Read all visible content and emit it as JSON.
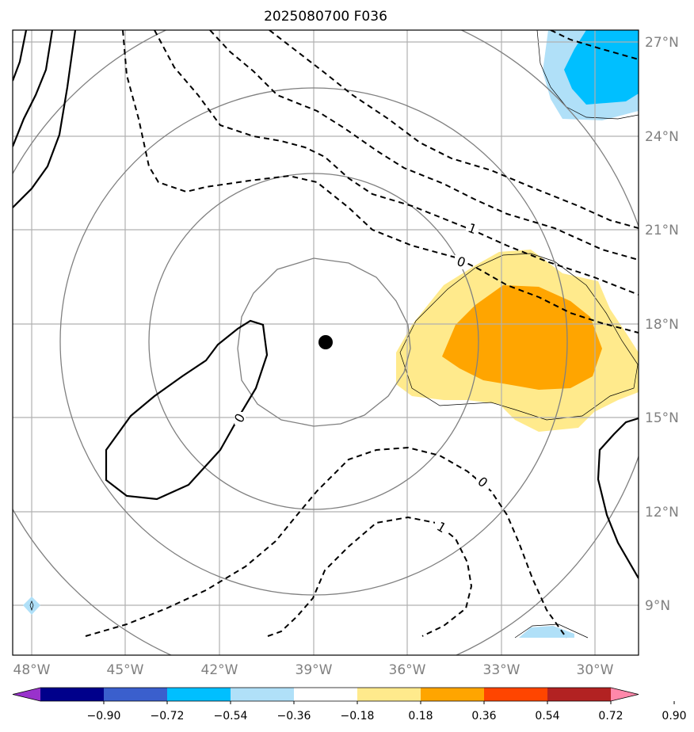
{
  "title": "2025080700 F036",
  "colors": {
    "shade_0.18_0.36": "#ffea8c",
    "shade_0.36_0.54": "#ffa500",
    "shade_-0.36_-0.18": "#b0e0f8",
    "shade_-0.54_-0.36": "#00bfff",
    "gridline": "#b0b0b0",
    "range_rings": "#808080",
    "contours": "#000000",
    "tick_labels": "#808080"
  },
  "map": {
    "lon_range": [
      -49.0,
      -29.0
    ],
    "lat_range": [
      7.0,
      27.5
    ],
    "lon_ticks": [
      "48°W",
      "45°W",
      "42°W",
      "39°W",
      "36°W",
      "33°W",
      "30°W"
    ],
    "lat_ticks": [
      "27°N",
      "24°N",
      "21°N",
      "18°N",
      "15°N",
      "12°N",
      "9°N"
    ],
    "center_marker": {
      "lon": -38.6,
      "lat": 17.4
    },
    "contour_labels": [
      "1",
      "0",
      "0",
      "0",
      "1"
    ]
  },
  "colorbar": {
    "levels": [
      "−0.90",
      "−0.72",
      "−0.54",
      "−0.36",
      "−0.18",
      "0.18",
      "0.36",
      "0.54",
      "0.72",
      "0.90"
    ],
    "colors": [
      "#9932cc",
      "#00008b",
      "#3a5fcd",
      "#00bfff",
      "#b0e0f8",
      "#ffffff",
      "#ffea8c",
      "#ffa500",
      "#ff4500",
      "#b22222",
      "#ff88aa"
    ]
  }
}
